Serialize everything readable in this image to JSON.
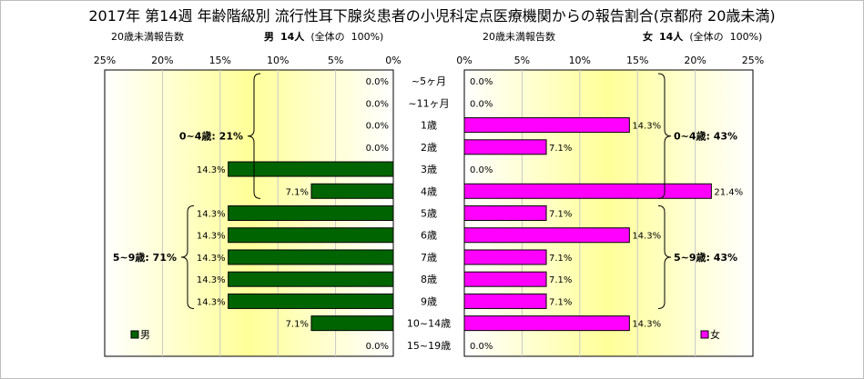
{
  "title": "2017年 第14週 年齢階級別 流行性耳下腺炎患者の小児科定点医療機関からの報告割合(京都府 20歳未満)",
  "male_header": {
    "label": "20歳未満報告数",
    "sex": "男",
    "count": "14人",
    "ratio_label": "(全体の",
    "ratio_value": "100%)"
  },
  "female_header": {
    "label": "20歳未満報告数",
    "sex": "女",
    "count": "14人",
    "ratio_label": "(全体の",
    "ratio_value": "100%)"
  },
  "colors": {
    "male": "#006400",
    "female": "#ff00ff",
    "panel_edge": "#ffffff",
    "panel_center": "#ffff99"
  },
  "chart_data": {
    "type": "bar",
    "orientation": "horizontal-butterfly",
    "categories": [
      "~5ヶ月",
      "~11ヶ月",
      "1歳",
      "2歳",
      "3歳",
      "4歳",
      "5歳",
      "6歳",
      "7歳",
      "8歳",
      "9歳",
      "10~14歳",
      "15~19歳"
    ],
    "xlim": [
      0,
      25
    ],
    "ticks": [
      "0%",
      "5%",
      "10%",
      "15%",
      "20%",
      "25%"
    ],
    "series": [
      {
        "name": "男",
        "values": [
          0.0,
          0.0,
          0.0,
          0.0,
          14.3,
          7.1,
          14.3,
          14.3,
          14.3,
          14.3,
          14.3,
          7.1,
          0.0
        ],
        "labels": [
          "0.0%",
          "0.0%",
          "0.0%",
          "0.0%",
          "14.3%",
          "7.1%",
          "14.3%",
          "14.3%",
          "14.3%",
          "14.3%",
          "14.3%",
          "7.1%",
          "0.0%"
        ]
      },
      {
        "name": "女",
        "values": [
          0.0,
          0.0,
          14.3,
          7.1,
          0.0,
          21.4,
          7.1,
          14.3,
          7.1,
          7.1,
          7.1,
          14.3,
          0.0
        ],
        "labels": [
          "0.0%",
          "0.0%",
          "14.3%",
          "7.1%",
          "0.0%",
          "21.4%",
          "7.1%",
          "14.3%",
          "7.1%",
          "7.1%",
          "7.1%",
          "14.3%",
          "0.0%"
        ]
      }
    ],
    "annotations": [
      {
        "side": "male",
        "text": "0~4歳: 21%",
        "from": 0,
        "to": 5
      },
      {
        "side": "male",
        "text": "5~9歳: 71%",
        "from": 6,
        "to": 10
      },
      {
        "side": "female",
        "text": "0~4歳: 43%",
        "from": 0,
        "to": 5
      },
      {
        "side": "female",
        "text": "5~9歳: 43%",
        "from": 6,
        "to": 10
      }
    ],
    "legend": [
      "男",
      "女"
    ],
    "legend_position": "bottom-left / bottom-right",
    "grid": true
  }
}
